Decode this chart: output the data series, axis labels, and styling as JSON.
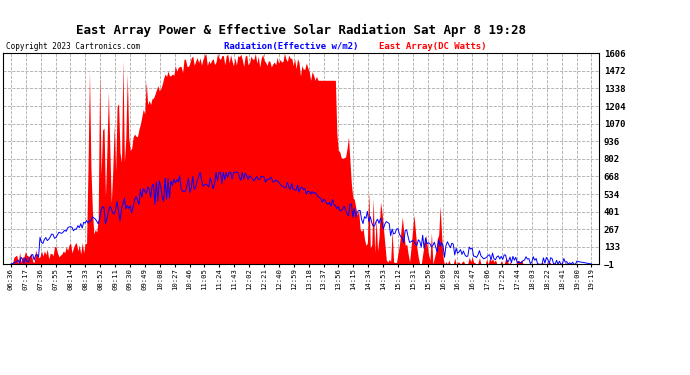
{
  "title": "East Array Power & Effective Solar Radiation Sat Apr 8 19:28",
  "copyright": "Copyright 2023 Cartronics.com",
  "legend_blue": "Radiation(Effective w/m2)",
  "legend_red": "East Array(DC Watts)",
  "yticks": [
    -1.1,
    132.8,
    266.7,
    400.6,
    534.5,
    668.4,
    802.3,
    936.2,
    1070.1,
    1204.0,
    1338.0,
    1471.9,
    1605.8
  ],
  "ymin": -1.1,
  "ymax": 1605.8,
  "bg_color": "#ffffff",
  "plot_bg_color": "#ffffff",
  "grid_color": "#aaaaaa",
  "red_color": "#ff0000",
  "blue_color": "#0000ff",
  "xtick_labels": [
    "06:36",
    "07:17",
    "07:36",
    "07:55",
    "08:14",
    "08:33",
    "08:52",
    "09:11",
    "09:30",
    "09:49",
    "10:08",
    "10:27",
    "10:46",
    "11:05",
    "11:24",
    "11:43",
    "12:02",
    "12:21",
    "12:40",
    "12:59",
    "13:18",
    "13:37",
    "13:56",
    "14:15",
    "14:34",
    "14:53",
    "15:12",
    "15:31",
    "15:50",
    "16:09",
    "16:28",
    "16:47",
    "17:06",
    "17:25",
    "17:44",
    "18:03",
    "18:22",
    "18:41",
    "19:00",
    "19:19"
  ]
}
